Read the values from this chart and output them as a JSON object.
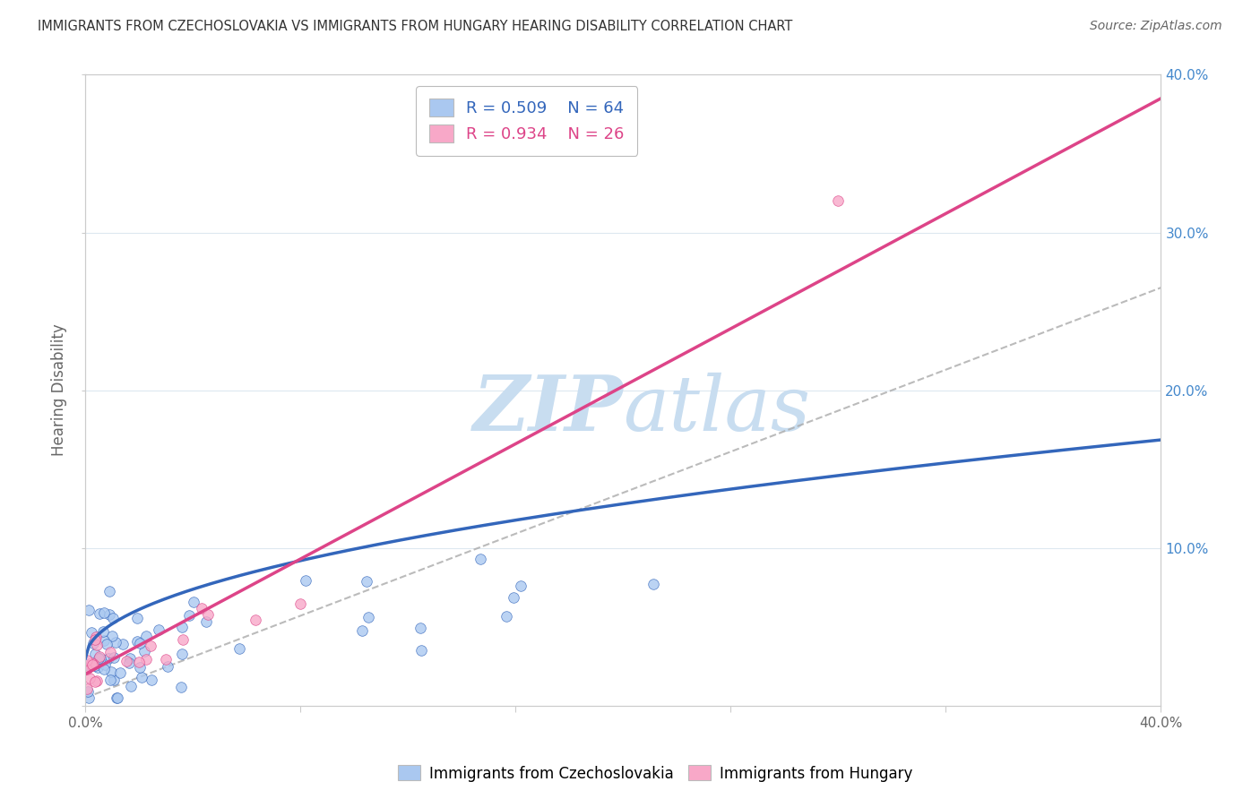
{
  "title": "IMMIGRANTS FROM CZECHOSLOVAKIA VS IMMIGRANTS FROM HUNGARY HEARING DISABILITY CORRELATION CHART",
  "source": "Source: ZipAtlas.com",
  "ylabel": "Hearing Disability",
  "xlim": [
    0.0,
    0.4
  ],
  "ylim": [
    0.0,
    0.4
  ],
  "legend_r1": "R = 0.509",
  "legend_n1": "N = 64",
  "legend_r2": "R = 0.934",
  "legend_n2": "N = 26",
  "series1_color": "#aac8f0",
  "series2_color": "#f8a8c8",
  "series1_label": "Immigrants from Czechoslovakia",
  "series2_label": "Immigrants from Hungary",
  "trendline1_color": "#3366bb",
  "trendline2_color": "#dd4488",
  "refline_color": "#aaaaaa",
  "background_color": "#ffffff",
  "watermark_color": "#c8ddf0",
  "title_color": "#333333",
  "grid_color": "#dde8f0",
  "tick_color": "#666666",
  "right_tick_color": "#4488cc"
}
